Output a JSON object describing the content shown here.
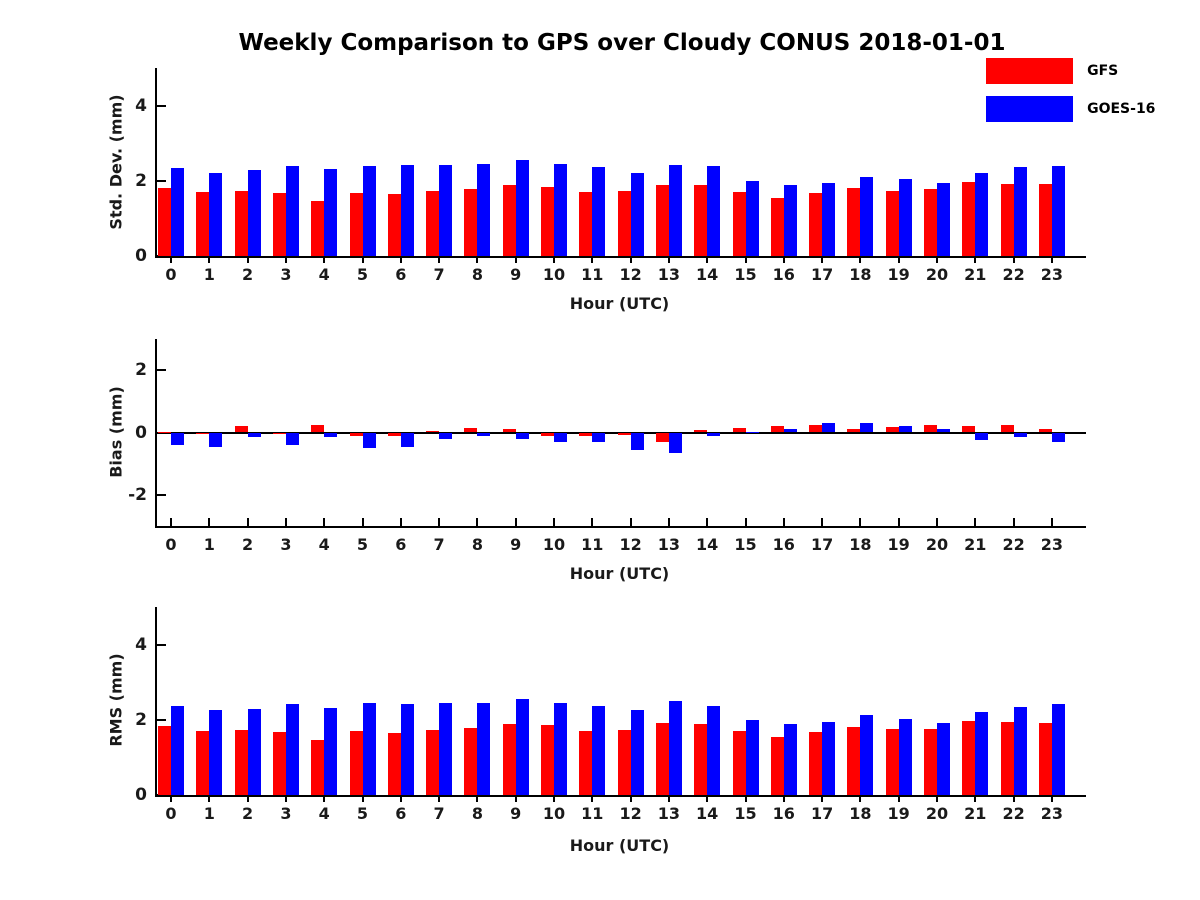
{
  "title": "Weekly Comparison to GPS over Cloudy CONUS 2018-01-01",
  "legend": {
    "items": [
      {
        "label": "GFS",
        "color": "#ff0000"
      },
      {
        "label": "GOES-16",
        "color": "#0000ff"
      }
    ]
  },
  "chart_data": [
    {
      "type": "bar",
      "title": "Weekly Comparison to GPS over Cloudy CONUS 2018-01-01",
      "ylabel": "Std. Dev. (mm)",
      "xlabel": "Hour (UTC)",
      "categories": [
        "0",
        "1",
        "2",
        "3",
        "4",
        "5",
        "6",
        "7",
        "8",
        "9",
        "10",
        "11",
        "12",
        "13",
        "14",
        "15",
        "16",
        "17",
        "18",
        "19",
        "20",
        "21",
        "22",
        "23"
      ],
      "ylim": [
        0,
        5
      ],
      "yticks": [
        0,
        2,
        4
      ],
      "grid": false,
      "legend_position": "upper-right-outside",
      "series": [
        {
          "name": "GFS",
          "color": "#ff0000",
          "values": [
            1.82,
            1.7,
            1.74,
            1.67,
            1.46,
            1.68,
            1.64,
            1.73,
            1.78,
            1.88,
            1.84,
            1.71,
            1.73,
            1.89,
            1.88,
            1.7,
            1.54,
            1.67,
            1.8,
            1.73,
            1.77,
            1.97,
            1.92,
            1.91
          ]
        },
        {
          "name": "GOES-16",
          "color": "#0000ff",
          "values": [
            2.33,
            2.2,
            2.29,
            2.39,
            2.32,
            2.39,
            2.41,
            2.43,
            2.46,
            2.55,
            2.46,
            2.36,
            2.21,
            2.43,
            2.39,
            2.0,
            1.9,
            1.94,
            2.1,
            2.05,
            1.93,
            2.21,
            2.36,
            2.4
          ]
        }
      ]
    },
    {
      "type": "bar",
      "ylabel": "Bias (mm)",
      "xlabel": "Hour (UTC)",
      "categories": [
        "0",
        "1",
        "2",
        "3",
        "4",
        "5",
        "6",
        "7",
        "8",
        "9",
        "10",
        "11",
        "12",
        "13",
        "14",
        "15",
        "16",
        "17",
        "18",
        "19",
        "20",
        "21",
        "22",
        "23"
      ],
      "ylim": [
        -3,
        3
      ],
      "yticks": [
        -2,
        0,
        2
      ],
      "grid": false,
      "series": [
        {
          "name": "GFS",
          "color": "#ff0000",
          "values": [
            0.03,
            -0.03,
            0.2,
            -0.05,
            0.25,
            -0.1,
            -0.12,
            0.05,
            0.15,
            0.1,
            -0.1,
            -0.1,
            -0.08,
            -0.3,
            0.08,
            0.15,
            0.2,
            0.25,
            0.1,
            0.18,
            0.25,
            0.2,
            0.25,
            0.1
          ]
        },
        {
          "name": "GOES-16",
          "color": "#0000ff",
          "values": [
            -0.4,
            -0.45,
            -0.15,
            -0.4,
            -0.15,
            -0.5,
            -0.45,
            -0.2,
            -0.1,
            -0.22,
            -0.3,
            -0.32,
            -0.55,
            -0.65,
            -0.1,
            0.02,
            0.12,
            0.32,
            0.3,
            0.22,
            0.1,
            -0.25,
            -0.15,
            -0.3
          ]
        }
      ]
    },
    {
      "type": "bar",
      "ylabel": "RMS (mm)",
      "xlabel": "Hour (UTC)",
      "categories": [
        "0",
        "1",
        "2",
        "3",
        "4",
        "5",
        "6",
        "7",
        "8",
        "9",
        "10",
        "11",
        "12",
        "13",
        "14",
        "15",
        "16",
        "17",
        "18",
        "19",
        "20",
        "21",
        "22",
        "23"
      ],
      "ylim": [
        0,
        5
      ],
      "yticks": [
        0,
        2,
        4
      ],
      "grid": false,
      "series": [
        {
          "name": "GFS",
          "color": "#ff0000",
          "values": [
            1.84,
            1.7,
            1.74,
            1.68,
            1.47,
            1.69,
            1.65,
            1.74,
            1.79,
            1.89,
            1.85,
            1.71,
            1.73,
            1.91,
            1.89,
            1.7,
            1.54,
            1.68,
            1.81,
            1.75,
            1.75,
            1.97,
            1.94,
            1.91
          ]
        },
        {
          "name": "GOES-16",
          "color": "#0000ff",
          "values": [
            2.38,
            2.26,
            2.29,
            2.41,
            2.31,
            2.44,
            2.41,
            2.44,
            2.46,
            2.54,
            2.46,
            2.38,
            2.25,
            2.49,
            2.38,
            2.0,
            1.89,
            1.94,
            2.12,
            2.03,
            1.91,
            2.2,
            2.35,
            2.42
          ]
        }
      ]
    }
  ]
}
